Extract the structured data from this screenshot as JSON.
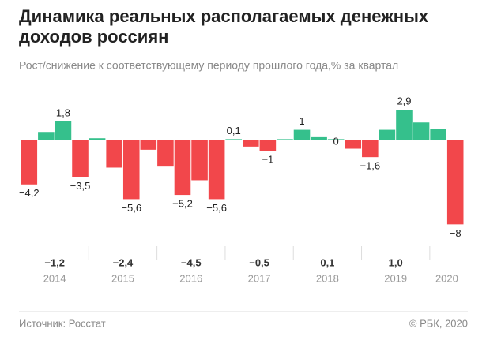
{
  "chart_data": {
    "type": "bar",
    "title": [
      "Динамика реальных располагаемых денежных",
      "доходов россиян"
    ],
    "subtitle": "Рост/снижение к соответствующему периоду прошлого года,% за квартал",
    "categories": [
      null,
      null,
      null,
      null,
      null,
      null,
      null,
      null,
      null,
      null,
      null,
      null,
      null,
      null,
      null,
      null,
      null,
      null,
      null,
      null,
      null,
      null,
      null,
      null,
      null,
      null
    ],
    "values": [
      -4.2,
      0.8,
      1.8,
      -3.5,
      0.2,
      -2.6,
      -5.6,
      -0.9,
      -2.5,
      -5.2,
      -3.8,
      -5.6,
      0.1,
      -0.6,
      -1,
      0,
      1,
      0.3,
      0,
      -0.8,
      -1.6,
      1.0,
      2.9,
      1.7,
      1.1,
      -8
    ],
    "value_labels": [
      "−4,2",
      null,
      "1,8",
      "−3,5",
      null,
      null,
      "−5,6",
      null,
      null,
      "−5,2",
      null,
      "−5,6",
      "0,1",
      null,
      "−1",
      null,
      "1",
      null,
      "0",
      null,
      "−1,6",
      null,
      "2,9",
      null,
      null,
      "−8"
    ],
    "years": [
      "2014",
      "2015",
      "2016",
      "2017",
      "2018",
      "2019",
      "2020"
    ],
    "annual_values": [
      -1.2,
      -2.4,
      -4.5,
      -0.5,
      0.1,
      1.0,
      null
    ],
    "annual_labels": [
      "−1,2",
      "−2,4",
      "−4,5",
      "−0,5",
      "0,1",
      "1,0",
      null
    ],
    "color_positive": "#35c08c",
    "color_negative": "#f2474b",
    "ylim": [
      -8.8,
      5.1
    ],
    "source": "Источник: Росстат",
    "copyright": "© РБК, 2020"
  }
}
